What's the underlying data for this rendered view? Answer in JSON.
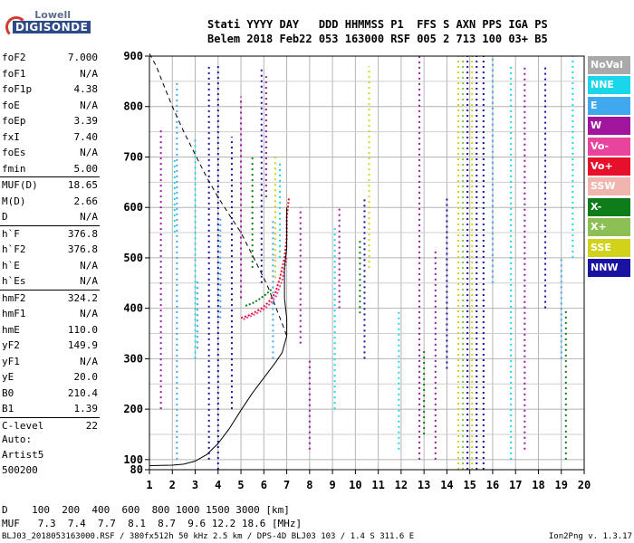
{
  "logo": {
    "line1": "Lowell",
    "line2": "DIGISONDE"
  },
  "header": {
    "row1": "Stati YYYY DAY   DDD HHMMSS P1  FFS S AXN PPS IGA PS",
    "row2": "Belem 2018 Feb22 053 163000 RSF 005 2 713 100 03+ B5"
  },
  "params_group1": [
    {
      "name": "foF2",
      "value": "7.000"
    },
    {
      "name": "foF1",
      "value": "N/A"
    },
    {
      "name": "foF1p",
      "value": "4.38"
    },
    {
      "name": "foE",
      "value": "N/A"
    },
    {
      "name": "foEp",
      "value": "3.39"
    },
    {
      "name": "fxI",
      "value": "7.40"
    },
    {
      "name": "foEs",
      "value": "N/A"
    },
    {
      "name": "fmin",
      "value": "5.00"
    }
  ],
  "params_group2": [
    {
      "name": "MUF(D)",
      "value": "18.65"
    },
    {
      "name": "M(D)",
      "value": "2.66"
    },
    {
      "name": "D",
      "value": "N/A"
    }
  ],
  "params_group3": [
    {
      "name": "h`F",
      "value": "376.8"
    },
    {
      "name": "h`F2",
      "value": "376.8"
    },
    {
      "name": "h`E",
      "value": "N/A"
    },
    {
      "name": "h`Es",
      "value": "N/A"
    }
  ],
  "params_group4": [
    {
      "name": "hmF2",
      "value": "324.2"
    },
    {
      "name": "hmF1",
      "value": "N/A"
    },
    {
      "name": "hmE",
      "value": "110.0"
    },
    {
      "name": "yF2",
      "value": "149.9"
    },
    {
      "name": "yF1",
      "value": "N/A"
    },
    {
      "name": "yE",
      "value": "20.0"
    },
    {
      "name": "B0",
      "value": "210.4"
    },
    {
      "name": "B1",
      "value": "1.39"
    }
  ],
  "params_group5": [
    {
      "name": "C-level",
      "value": "22"
    }
  ],
  "auto": {
    "line1": "Auto:",
    "line2": "Artist5",
    "line3": "500200"
  },
  "legend": [
    {
      "label": "NoVal",
      "color": "#a9a9a9"
    },
    {
      "label": "NNE",
      "color": "#1ad6ea"
    },
    {
      "label": "E",
      "color": "#3fa8ee"
    },
    {
      "label": "W",
      "color": "#a0149e"
    },
    {
      "label": "Vo-",
      "color": "#e8449e"
    },
    {
      "label": "Vo+",
      "color": "#e6102a"
    },
    {
      "label": "SSW",
      "color": "#f0b6ae"
    },
    {
      "label": "X-",
      "color": "#0f7c1a"
    },
    {
      "label": "X+",
      "color": "#8cc055"
    },
    {
      "label": "SSE",
      "color": "#d2d21a"
    },
    {
      "label": "NNW",
      "color": "#1a12a0"
    }
  ],
  "bottom": {
    "row1": "D    100  200  400  600  800 1000 1500 3000 [km]",
    "row2": "MUF   7.3  7.4  7.7  8.1  8.7  9.6 12.2 18.6 [MHz]"
  },
  "footer": {
    "left": "BLJ03_2018053163000.RSF / 380fx512h 50 kHz 2.5 km / DPS-4D BLJ03 103 / 1.4 S 311.6 E",
    "right": "Ion2Png v. 1.3.17"
  },
  "chart_data": {
    "type": "scatter",
    "xlim": [
      1,
      20
    ],
    "ylim": [
      80,
      900
    ],
    "x_ticks": [
      1,
      2,
      3,
      4,
      5,
      6,
      7,
      8,
      9,
      10,
      11,
      12,
      13,
      14,
      15,
      16,
      17,
      18,
      19,
      20
    ],
    "y_ticks": [
      100,
      200,
      300,
      400,
      500,
      600,
      700,
      800,
      900
    ],
    "y_minor_ticks": [
      150,
      250,
      350,
      450,
      550,
      650,
      750,
      850
    ],
    "grid": true,
    "curves": [
      {
        "style": "solid",
        "points": [
          [
            1.0,
            88
          ],
          [
            2.0,
            89
          ],
          [
            2.5,
            91
          ],
          [
            3.0,
            97
          ],
          [
            3.5,
            110
          ],
          [
            4.0,
            132
          ],
          [
            4.5,
            162
          ],
          [
            5.0,
            198
          ],
          [
            5.5,
            232
          ],
          [
            6.0,
            262
          ],
          [
            6.5,
            292
          ],
          [
            6.8,
            312
          ],
          [
            7.0,
            345
          ],
          [
            7.0,
            380
          ],
          [
            6.9,
            420
          ],
          [
            6.9,
            480
          ],
          [
            7.0,
            520
          ],
          [
            7.0,
            560
          ],
          [
            7.0,
            600
          ]
        ]
      },
      {
        "style": "dashed",
        "points": [
          [
            1.0,
            905
          ],
          [
            1.3,
            880
          ],
          [
            1.6,
            845
          ],
          [
            2.0,
            800
          ],
          [
            2.5,
            750
          ],
          [
            3.0,
            705
          ],
          [
            3.5,
            660
          ],
          [
            4.0,
            620
          ],
          [
            4.5,
            585
          ],
          [
            5.0,
            550
          ],
          [
            5.5,
            505
          ],
          [
            6.0,
            460
          ],
          [
            6.2,
            440
          ],
          [
            6.5,
            405
          ],
          [
            6.8,
            370
          ],
          [
            7.0,
            345
          ]
        ]
      }
    ],
    "traces": [
      {
        "color": "#e6102a",
        "points": [
          [
            5.0,
            381
          ],
          [
            5.3,
            385
          ],
          [
            5.6,
            392
          ],
          [
            5.9,
            400
          ],
          [
            6.2,
            412
          ],
          [
            6.5,
            430
          ],
          [
            6.7,
            460
          ],
          [
            6.9,
            500
          ],
          [
            7.0,
            540
          ],
          [
            7.0,
            580
          ],
          [
            7.1,
            620
          ]
        ]
      },
      {
        "color": "#e8449e",
        "points": [
          [
            5.1,
            378
          ],
          [
            5.4,
            384
          ],
          [
            5.7,
            390
          ],
          [
            6.0,
            398
          ],
          [
            6.3,
            410
          ],
          [
            6.55,
            425
          ],
          [
            6.8,
            455
          ],
          [
            7.0,
            500
          ]
        ]
      },
      {
        "color": "#0f7c1a",
        "points": [
          [
            5.2,
            405
          ],
          [
            5.5,
            410
          ],
          [
            5.8,
            418
          ],
          [
            6.1,
            428
          ],
          [
            6.4,
            440
          ]
        ]
      }
    ],
    "columns": [
      {
        "x": 1.5,
        "y0": 200,
        "y1": 760,
        "color": "#a0149e"
      },
      {
        "x": 2.1,
        "y0": 550,
        "y1": 700,
        "color": "#1ad6ea"
      },
      {
        "x": 2.2,
        "y0": 100,
        "y1": 850,
        "color": "#3fa8ee"
      },
      {
        "x": 3.0,
        "y0": 300,
        "y1": 740,
        "color": "#1ad6ea"
      },
      {
        "x": 3.1,
        "y0": 320,
        "y1": 460,
        "color": "#3fa8ee"
      },
      {
        "x": 3.6,
        "y0": 100,
        "y1": 880,
        "color": "#1a12a0"
      },
      {
        "x": 4.0,
        "y0": 80,
        "y1": 880,
        "color": "#1a12a0"
      },
      {
        "x": 4.1,
        "y0": 380,
        "y1": 580,
        "color": "#3fa8ee"
      },
      {
        "x": 4.6,
        "y0": 200,
        "y1": 740,
        "color": "#1a12a0"
      },
      {
        "x": 5.0,
        "y0": 420,
        "y1": 820,
        "color": "#a0149e"
      },
      {
        "x": 5.5,
        "y0": 480,
        "y1": 700,
        "color": "#0f7c1a"
      },
      {
        "x": 5.9,
        "y0": 450,
        "y1": 880,
        "color": "#1a12a0"
      },
      {
        "x": 6.1,
        "y0": 620,
        "y1": 860,
        "color": "#a0149e"
      },
      {
        "x": 6.4,
        "y0": 300,
        "y1": 580,
        "color": "#3fa8ee"
      },
      {
        "x": 6.5,
        "y0": 460,
        "y1": 700,
        "color": "#d2d21a"
      },
      {
        "x": 6.7,
        "y0": 500,
        "y1": 690,
        "color": "#1ad6ea"
      },
      {
        "x": 7.6,
        "y0": 330,
        "y1": 600,
        "color": "#a0149e"
      },
      {
        "x": 8.0,
        "y0": 120,
        "y1": 300,
        "color": "#a0149e"
      },
      {
        "x": 9.1,
        "y0": 200,
        "y1": 560,
        "color": "#1ad6ea"
      },
      {
        "x": 9.3,
        "y0": 400,
        "y1": 600,
        "color": "#a0149e"
      },
      {
        "x": 10.2,
        "y0": 390,
        "y1": 540,
        "color": "#0f7c1a"
      },
      {
        "x": 10.4,
        "y0": 300,
        "y1": 620,
        "color": "#1a12a0"
      },
      {
        "x": 10.6,
        "y0": 480,
        "y1": 880,
        "color": "#d2d21a"
      },
      {
        "x": 11.9,
        "y0": 120,
        "y1": 400,
        "color": "#1ad6ea"
      },
      {
        "x": 12.8,
        "y0": 100,
        "y1": 900,
        "color": "#a0149e"
      },
      {
        "x": 13.0,
        "y0": 150,
        "y1": 320,
        "color": "#0f7c1a"
      },
      {
        "x": 13.5,
        "y0": 100,
        "y1": 520,
        "color": "#a0149e"
      },
      {
        "x": 14.0,
        "y0": 280,
        "y1": 620,
        "color": "#1a12a0"
      },
      {
        "x": 14.5,
        "y0": 80,
        "y1": 900,
        "color": "#d2d21a"
      },
      {
        "x": 14.7,
        "y0": 80,
        "y1": 900,
        "color": "#8cc055"
      },
      {
        "x": 14.9,
        "y0": 80,
        "y1": 900,
        "color": "#1a12a0"
      },
      {
        "x": 15.1,
        "y0": 80,
        "y1": 900,
        "color": "#d2d21a"
      },
      {
        "x": 15.3,
        "y0": 80,
        "y1": 900,
        "color": "#1a12a0"
      },
      {
        "x": 15.6,
        "y0": 80,
        "y1": 900,
        "color": "#1a12a0"
      },
      {
        "x": 16.0,
        "y0": 450,
        "y1": 900,
        "color": "#3fa8ee"
      },
      {
        "x": 16.8,
        "y0": 100,
        "y1": 880,
        "color": "#1ad6ea"
      },
      {
        "x": 17.4,
        "y0": 120,
        "y1": 880,
        "color": "#a0149e"
      },
      {
        "x": 18.3,
        "y0": 400,
        "y1": 880,
        "color": "#1a12a0"
      },
      {
        "x": 19.0,
        "y0": 300,
        "y1": 500,
        "color": "#3fa8ee"
      },
      {
        "x": 19.2,
        "y0": 100,
        "y1": 400,
        "color": "#0f7c1a"
      },
      {
        "x": 19.5,
        "y0": 500,
        "y1": 900,
        "color": "#1ad6ea"
      }
    ]
  }
}
